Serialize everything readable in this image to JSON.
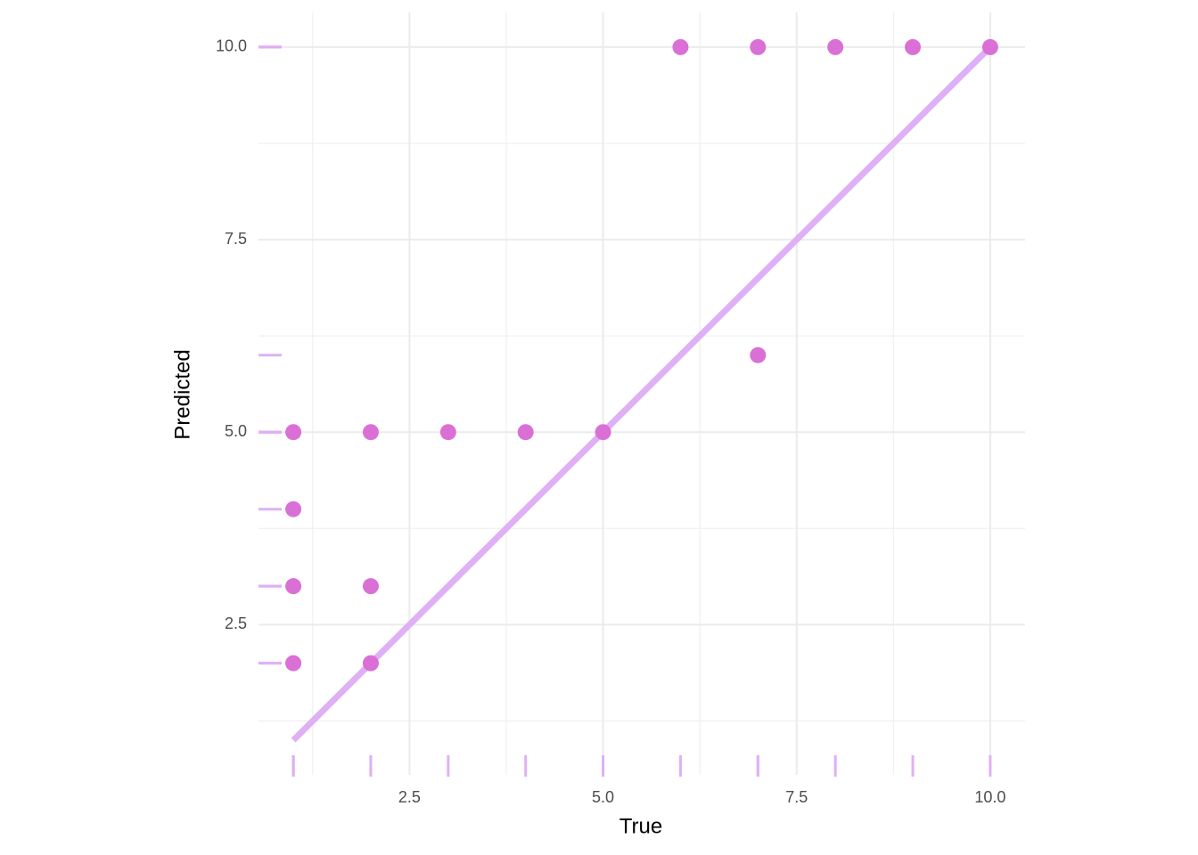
{
  "chart_data": {
    "type": "scatter",
    "x_label": "True",
    "y_label": "Predicted",
    "x": [
      1,
      1,
      1,
      1,
      2,
      2,
      2,
      3,
      4,
      5,
      6,
      7,
      7,
      8,
      9,
      10
    ],
    "values": [
      5,
      4,
      3,
      2,
      5,
      3,
      2,
      5,
      5,
      5,
      10,
      10,
      6,
      10,
      10,
      10
    ],
    "color": "#da70d6",
    "line": {
      "x": [
        1,
        10
      ],
      "values": [
        1,
        10
      ],
      "color": "#dfb0f5"
    },
    "rug": true,
    "rug_color": "#dfb0f5",
    "xlim": [
      0.55,
      10.45
    ],
    "ylim": [
      0.55,
      10.45
    ],
    "xticks": [
      2.5,
      {
        "value": 5,
        "label": "5.0"
      },
      7.5,
      {
        "value": 10,
        "label": "10.0"
      }
    ],
    "yticks": [
      2.5,
      {
        "value": 5,
        "label": "5.0"
      },
      7.5,
      {
        "value": 10,
        "label": "10.0"
      }
    ],
    "minor_xticks": [
      1.25,
      3.75,
      6.25,
      8.75
    ],
    "minor_yticks": [
      1.25,
      3.75,
      6.25,
      8.75
    ],
    "grid": true
  }
}
